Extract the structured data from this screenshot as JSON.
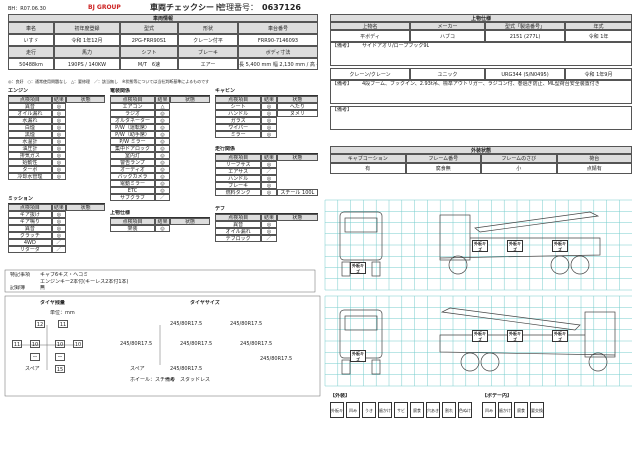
{
  "header": {
    "date": "BH：R07.06.30",
    "logo": "BJ GROUP",
    "title": "車両チェックシート",
    "control_label": "管理番号：",
    "control_number": "0637126"
  },
  "vehicle": {
    "title": "車両情報",
    "rows": [
      [
        "車名",
        "初年度登録",
        "型式",
        "形状",
        "車台番号"
      ],
      [
        "いすゞ",
        "令和 1年12月",
        "2PG-FRR90S1",
        "クレーン付平",
        "FRR90-7146093"
      ],
      [
        "走行",
        "馬力",
        "シフト",
        "ブレーキ",
        "ボディ寸法"
      ],
      [
        "50488km",
        "190PS / 140KW",
        "M/T　6速",
        "エアー",
        "長 5,400 mm 幅 2,130 mm / 高 400 mm 内高 mm"
      ]
    ]
  },
  "legend": "◎：良好　○：通常使用問題なし　△：要修理　／：該当無し　※状態等については当社判断基準によるものです",
  "checks": [
    {
      "title": "エンジン",
      "header": [
        "点検項目",
        "結果",
        "状態"
      ],
      "items": [
        [
          "異音",
          "◎"
        ],
        [
          "オイル漏れ",
          "◎"
        ],
        [
          "水漏れ",
          "◎"
        ],
        [
          "白煙",
          "◎"
        ],
        [
          "黒煙",
          "◎"
        ],
        [
          "水温計",
          "◎"
        ],
        [
          "油圧計",
          "◎"
        ],
        [
          "排気ガス",
          "◎"
        ],
        [
          "始動性",
          "◎"
        ],
        [
          "ターボ",
          "◎"
        ],
        [
          "冷却水管理",
          "◎"
        ]
      ]
    },
    {
      "title": "ミッション",
      "header": [
        "点検項目",
        "結果",
        "状態"
      ],
      "items": [
        [
          "ギア抜け",
          "◎"
        ],
        [
          "ギア鳴り",
          "◎"
        ],
        [
          "異音",
          "◎"
        ],
        [
          "クラッチ",
          "◎"
        ],
        [
          "4WD",
          "／"
        ],
        [
          "リターダ",
          "／"
        ]
      ]
    },
    {
      "title": "電装関係",
      "header": [
        "点検項目",
        "結果",
        "状態"
      ],
      "items": [
        [
          "エアコン",
          "△"
        ],
        [
          "ラジオ",
          "◎"
        ],
        [
          "オルタネーター",
          "◎"
        ],
        [
          "P/W（運転席）",
          "◎"
        ],
        [
          "P/W（助手席）",
          "◎"
        ],
        [
          "P/W ミラー",
          "◎"
        ],
        [
          "集中ドアロック",
          "◎"
        ],
        [
          "室内灯",
          "◎"
        ],
        [
          "警告ランプ",
          "◎"
        ],
        [
          "オーディオ",
          "◎"
        ],
        [
          "バックカメラ",
          "◎"
        ],
        [
          "電動ミラー",
          "◎"
        ],
        [
          "ETC",
          "◎"
        ],
        [
          "サブクラフ",
          "／"
        ]
      ]
    },
    {
      "title": "上物仕様",
      "header": [
        "点検項目",
        "結果",
        "状態"
      ],
      "items": [
        [
          "架装",
          "◎"
        ]
      ]
    },
    {
      "title": "キャビン",
      "header": [
        "点検項目",
        "結果",
        "状態"
      ],
      "items": [
        [
          "シート",
          "◎",
          "へたり"
        ],
        [
          "ハンドル",
          "◎",
          "ヌメリ"
        ],
        [
          "ガラス",
          "◎"
        ],
        [
          "ワイパー",
          "◎"
        ],
        [
          "ミラー",
          "◎"
        ]
      ]
    },
    {
      "title": "走行関係",
      "header": [
        "点検項目",
        "結果",
        "状態"
      ],
      "items": [
        [
          "リーフサス",
          "◎"
        ],
        [
          "エアサス",
          "／"
        ],
        [
          "ハンドル",
          "◎"
        ],
        [
          "ブレーキ",
          "◎"
        ],
        [
          "燃料タンク",
          "◎",
          "スチール 100L"
        ]
      ]
    },
    {
      "title": "デフ",
      "header": [
        "点検項目",
        "結果",
        "状態"
      ],
      "items": [
        [
          "異音",
          "◎"
        ],
        [
          "オイル漏れ",
          "◎"
        ],
        [
          "デフロック",
          "／"
        ]
      ]
    }
  ],
  "remarks": {
    "label": "特記事項",
    "lines": [
      "キャブ6キズ・ヘコミ",
      "エンジンキー2本付(キーレス2本付1本)"
    ],
    "record_label": "記録簿",
    "record": "無"
  },
  "tires": {
    "title": "タイヤ残量",
    "unit": "単位：mm",
    "front": [
      "12",
      "11"
    ],
    "rear": [
      "11",
      "10",
      "10",
      "10"
    ],
    "third": [
      "ー",
      "ー"
    ],
    "spare_label": "スペア",
    "spare": "15"
  },
  "tire_size": {
    "title": "タイヤサイズ",
    "sizes": [
      "245/80R17.5",
      "245/80R17.5",
      "245/80R17.5",
      "245/80R17.5",
      "245/80R17.5",
      "245/80R17.5"
    ],
    "spare_label": "スペア",
    "spare": "245/80R17.5",
    "wheel": "ホイール：スチール",
    "note_label": "備考",
    "note": "スタッドレス"
  },
  "upper": {
    "title": "上物仕様",
    "headers": [
      "上物名",
      "メーカー",
      "型式「製造番号」",
      "年式"
    ],
    "units": [
      {
        "cells": [
          "平ボディ",
          "ハブコ",
          "2151 (277L)",
          "令和 1年"
        ],
        "note_label": "【備考】",
        "note": "サイドアオリ/ロープフック9L"
      },
      {
        "cells": [
          "クレーン/クレーン",
          "ユニック",
          "URG344 (S/N0495)",
          "令和 1年9月"
        ],
        "note_label": "【備考】",
        "note": "4段ブーム、フックイン、2.93t吊、標準アウトリガー、ラジコン付、巻過ぎ防止、ML型荷台安全装置付き"
      }
    ],
    "extra_note": "【備考】"
  },
  "exterior": {
    "title": "外装状態",
    "headers": [
      "キャブコーション",
      "フレーム番号",
      "フレームのさび",
      "荷台"
    ],
    "values": [
      "有",
      "腐食無",
      "小",
      "点錆有"
    ]
  },
  "damage": [
    "外板キズ",
    "外板キズ",
    "外板キズ",
    "外板キズ",
    "外板キズ",
    "外板キズ",
    "外板キズ",
    "外板キズ"
  ],
  "key": {
    "outer_label": "【外装】",
    "outer": [
      "外板キズ",
      "凹み",
      "うき",
      "歯かけ",
      "サビ",
      "腐食",
      "穴あき",
      "割れ",
      "色ぬけ"
    ],
    "inner_label": "【ボデー内】",
    "inner": [
      "凹み",
      "歯かけ",
      "腐食",
      "要交換"
    ]
  }
}
